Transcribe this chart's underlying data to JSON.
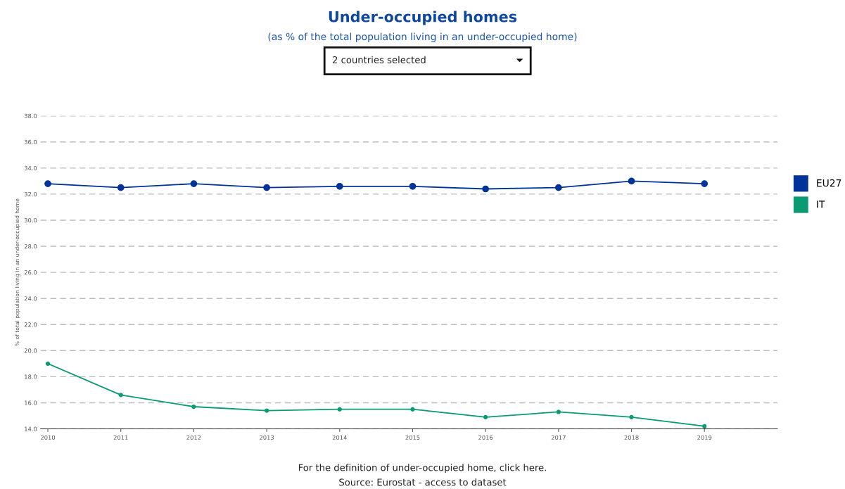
{
  "chart_data": {
    "type": "line",
    "title": "Under-occupied homes",
    "subtitle": "(as % of the total population living in an under-occupied home)",
    "ylabel": "% of total population living in an under-occupied home",
    "x": [
      2010,
      2011,
      2012,
      2013,
      2014,
      2015,
      2016,
      2017,
      2018,
      2019
    ],
    "series": [
      {
        "name": "EU27",
        "color": "#003399",
        "values": [
          32.8,
          32.5,
          32.8,
          32.5,
          32.6,
          32.6,
          32.4,
          32.5,
          33.0,
          32.8
        ]
      },
      {
        "name": "IT",
        "color": "#0a9b72",
        "values": [
          19.0,
          16.6,
          15.7,
          15.4,
          15.5,
          15.5,
          14.9,
          15.3,
          14.9,
          14.2
        ]
      }
    ],
    "xlim": [
      2009.9,
      2020
    ],
    "xticks": [
      2010,
      2011,
      2012,
      2013,
      2014,
      2015,
      2016,
      2017,
      2018,
      2019
    ],
    "ylim": [
      14,
      38
    ],
    "yticks": [
      {
        "value": 14,
        "label": "14.0"
      },
      {
        "value": 16,
        "label": "16.0"
      },
      {
        "value": 18,
        "label": "18.0"
      },
      {
        "value": 20,
        "label": "20.0"
      },
      {
        "value": 22,
        "label": "22.0"
      },
      {
        "value": 24,
        "label": "24.0"
      },
      {
        "value": 26,
        "label": "26.0"
      },
      {
        "value": 28,
        "label": "28.0"
      },
      {
        "value": 30,
        "label": "30.0"
      },
      {
        "value": 32,
        "label": "32.0"
      },
      {
        "value": 34,
        "label": "34.0"
      },
      {
        "value": 36,
        "label": "36.0"
      },
      {
        "value": 38,
        "label": "38.0"
      }
    ],
    "grid": "y",
    "legend": "right",
    "marker": "circle",
    "line_style": "solid",
    "annotations": [
      "2 countries selected",
      "For the definition of under-occupied home, click here.",
      "Source: Eurostat - access to dataset"
    ]
  }
}
